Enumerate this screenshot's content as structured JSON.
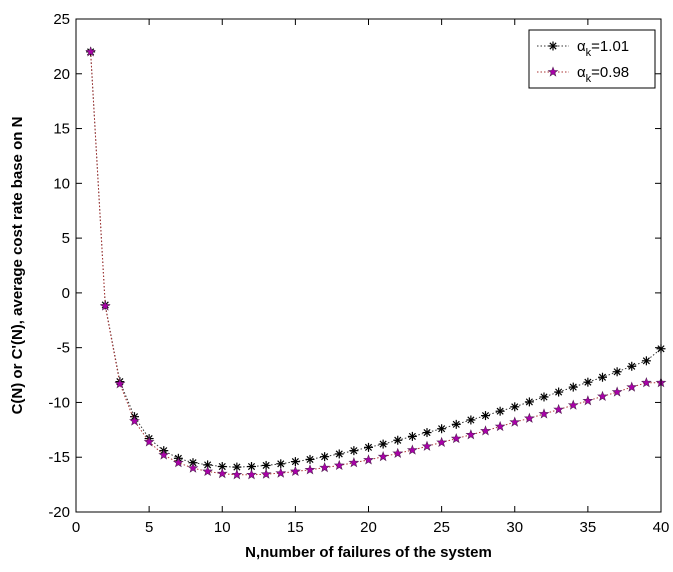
{
  "chart_data": {
    "type": "line",
    "title": "",
    "xlabel": "N,number of failures of the system",
    "ylabel": "C(N) or C'(N), average cost rate base on N",
    "xlim": [
      0,
      40
    ],
    "ylim": [
      -20,
      25
    ],
    "xticks": [
      0,
      5,
      10,
      15,
      20,
      25,
      30,
      35,
      40
    ],
    "yticks": [
      -20,
      -15,
      -10,
      -5,
      0,
      5,
      10,
      15,
      20,
      25
    ],
    "grid": false,
    "legend_position": "top-right",
    "x": [
      1,
      2,
      3,
      4,
      5,
      6,
      7,
      8,
      9,
      10,
      11,
      12,
      13,
      14,
      15,
      16,
      17,
      18,
      19,
      20,
      21,
      22,
      23,
      24,
      25,
      26,
      27,
      28,
      29,
      30,
      31,
      32,
      33,
      34,
      35,
      36,
      37,
      38,
      39,
      40
    ],
    "series": [
      {
        "name": "αk=1.01",
        "legend_base": "α",
        "legend_subscript": "k",
        "legend_value": "=1.01",
        "marker": "asterisk",
        "color": "#000000",
        "line_color": "#333333",
        "values": [
          22.0,
          -1.1,
          -8.1,
          -11.3,
          -13.3,
          -14.4,
          -15.1,
          -15.5,
          -15.7,
          -15.85,
          -15.9,
          -15.85,
          -15.75,
          -15.6,
          -15.4,
          -15.2,
          -14.95,
          -14.7,
          -14.4,
          -14.1,
          -13.8,
          -13.45,
          -13.1,
          -12.75,
          -12.4,
          -12.0,
          -11.6,
          -11.2,
          -10.8,
          -10.4,
          -9.95,
          -9.5,
          -9.05,
          -8.6,
          -8.15,
          -7.7,
          -7.2,
          -6.7,
          -6.2,
          -5.1
        ]
      },
      {
        "name": "αk=0.98",
        "legend_base": "α",
        "legend_subscript": "k",
        "legend_value": "=0.98",
        "marker": "star",
        "color": "#aa00aa",
        "line_color": "#aa3333",
        "values": [
          22.0,
          -1.2,
          -8.3,
          -11.7,
          -13.6,
          -14.8,
          -15.5,
          -16.0,
          -16.3,
          -16.5,
          -16.6,
          -16.6,
          -16.55,
          -16.45,
          -16.3,
          -16.15,
          -15.95,
          -15.75,
          -15.5,
          -15.25,
          -14.95,
          -14.65,
          -14.35,
          -14.0,
          -13.65,
          -13.3,
          -12.95,
          -12.6,
          -12.2,
          -11.8,
          -11.45,
          -11.05,
          -10.65,
          -10.25,
          -9.85,
          -9.45,
          -9.05,
          -8.6,
          -8.2,
          -8.2
        ]
      }
    ]
  }
}
